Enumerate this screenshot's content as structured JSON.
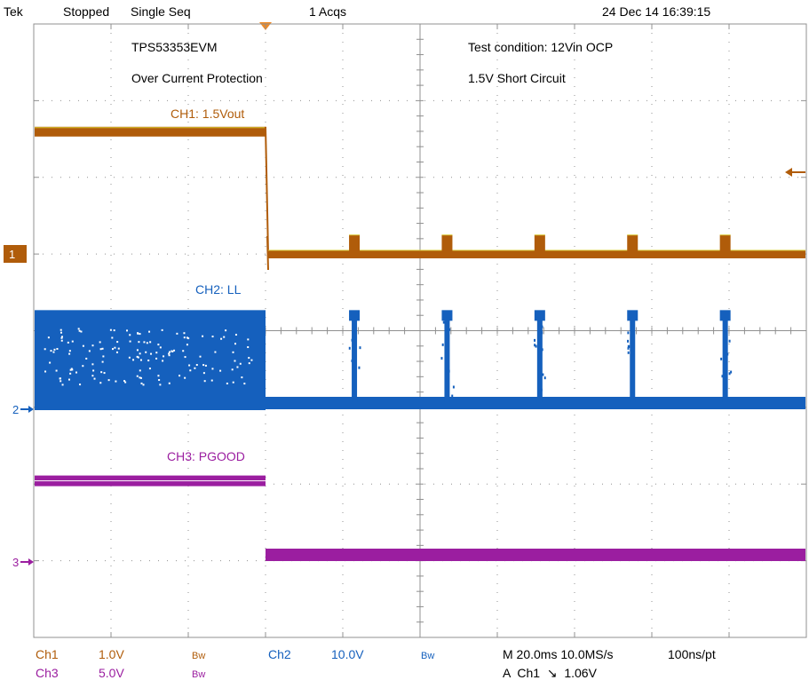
{
  "header": {
    "brand": "Tek",
    "state": "Stopped",
    "mode": "Single Seq",
    "acqs": "1 Acqs",
    "datetime": "24 Dec 14 16:39:15"
  },
  "annotations": {
    "board": "TPS53353EVM",
    "feature": "Over Current Protection",
    "test_condition": "Test condition: 12Vin OCP",
    "short": "1.5V Short Circuit",
    "ch1_label": "CH1: 1.5Vout",
    "ch2_label": "CH2: LL",
    "ch3_label": "CH3: PGOOD"
  },
  "markers": {
    "ch1": "1",
    "ch2": "2",
    "ch3": "3"
  },
  "footer": {
    "ch1_name": "Ch1",
    "ch1_scale": "1.0V",
    "ch1_bw": "Bw",
    "ch2_name": "Ch2",
    "ch2_scale": "10.0V",
    "ch2_bw": "Bw",
    "ch3_name": "Ch3",
    "ch3_scale": "5.0V",
    "ch3_bw": "Bw",
    "timebase": "M 20.0ms 10.0MS/s",
    "resolution": "100ns/pt",
    "trigger": "A  Ch1  ↘  1.06V"
  },
  "colors": {
    "ch1": "#b05c0a",
    "ch1_edge": "#d7c832",
    "ch2": "#1560bd",
    "ch3": "#9b1ea0",
    "grid": "#909090"
  },
  "chart_data": {
    "type": "line",
    "x_divisions": 10,
    "y_divisions": 8,
    "time_per_div_ms": 20,
    "trigger_time_ms": 60,
    "hiccup_times_ms": [
      83,
      107,
      131,
      155,
      179
    ],
    "series": [
      {
        "name": "CH1: 1.5Vout",
        "channel": "ch1",
        "volts_per_div": 1.0,
        "points": [
          [
            0,
            1.6
          ],
          [
            60,
            1.6
          ],
          [
            61,
            0.0
          ],
          [
            200,
            0.0
          ]
        ],
        "hiccup_pulse_v": 0.2
      },
      {
        "name": "CH2: LL",
        "channel": "ch2",
        "volts_per_div": 10.0,
        "switching_high_v": 12.0,
        "switching_until_ms": 60,
        "idle_v": 0.0,
        "hiccup_burst_v": 12.0
      },
      {
        "name": "CH3: PGOOD",
        "channel": "ch3",
        "volts_per_div": 5.0,
        "points": [
          [
            0,
            5.0
          ],
          [
            60,
            5.0
          ],
          [
            60,
            0.0
          ],
          [
            200,
            0.0
          ]
        ]
      }
    ]
  }
}
